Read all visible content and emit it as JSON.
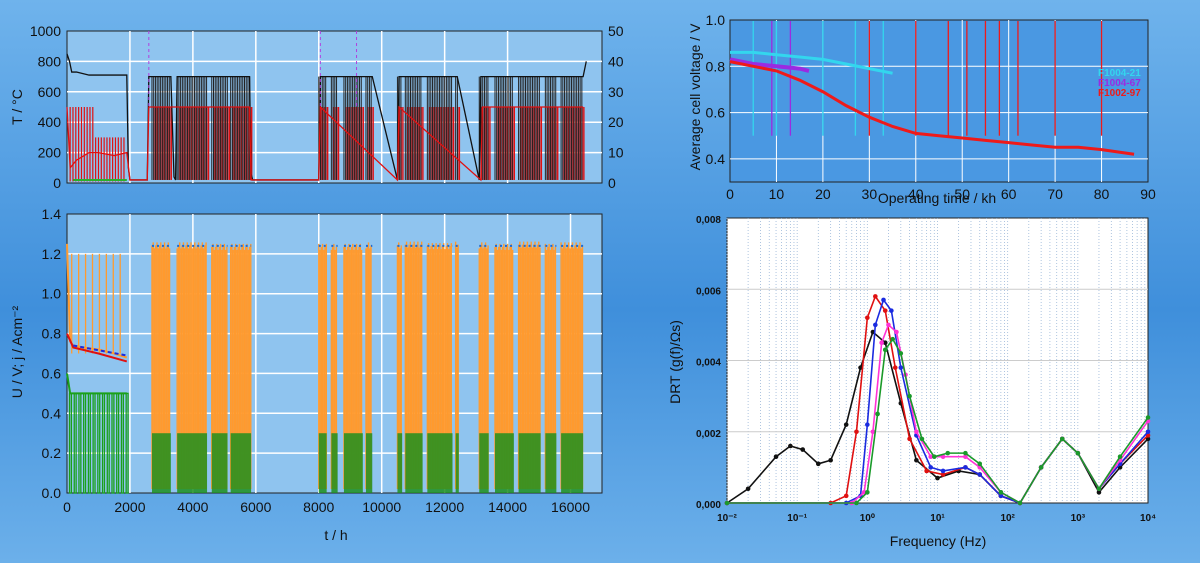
{
  "chart_data": [
    {
      "id": "temperature",
      "type": "line",
      "ylabel": "T / °C",
      "y2label": "",
      "ylim": [
        0,
        1000
      ],
      "yticks": [
        "0",
        "200",
        "400",
        "600",
        "800",
        "1000"
      ],
      "y2lim": [
        0,
        50
      ],
      "y2ticks": [
        "0",
        "10",
        "20",
        "30",
        "40",
        "50"
      ],
      "xlim": [
        0,
        17000
      ],
      "grid": true,
      "series": [
        {
          "color": "#111111",
          "x": [
            0,
            80,
            150,
            300,
            700,
            1900,
            1950,
            2000,
            2550,
            2600,
            2700,
            3300,
            3400,
            3450,
            3500,
            4500,
            4600,
            5100,
            5200,
            5700,
            5800,
            5850,
            5900,
            8000,
            8050,
            9700,
            10500,
            10550,
            10600,
            12400,
            13100,
            13150,
            13200,
            16400,
            16500
          ],
          "y": [
            850,
            800,
            730,
            730,
            710,
            710,
            100,
            20,
            20,
            700,
            700,
            700,
            40,
            20,
            700,
            700,
            700,
            700,
            700,
            700,
            700,
            60,
            20,
            20,
            700,
            700,
            20,
            700,
            700,
            700,
            20,
            700,
            700,
            700,
            800
          ]
        },
        {
          "color": "#e01010",
          "x": [
            0,
            100,
            300,
            700,
            1000,
            1500,
            1900,
            2000,
            2550,
            2600,
            5800,
            5850,
            8000,
            8050,
            10500,
            10550,
            13150,
            13200,
            16400
          ],
          "y": [
            500,
            100,
            150,
            200,
            200,
            180,
            200,
            20,
            20,
            500,
            500,
            20,
            20,
            500,
            20,
            500,
            20,
            500,
            500
          ]
        }
      ]
    },
    {
      "id": "voltage-current",
      "type": "line",
      "xlabel": "t / h",
      "ylabel": "U / V; j / Acm⁻²",
      "xlim": [
        0,
        17000
      ],
      "xticks": [
        "0",
        "2000",
        "4000",
        "6000",
        "8000",
        "10000",
        "12000",
        "14000",
        "16000"
      ],
      "ylim": [
        0,
        1.4
      ],
      "yticks": [
        "0.0",
        "0.2",
        "0.4",
        "0.6",
        "0.8",
        "1.0",
        "1.2",
        "1.4"
      ],
      "grid": true,
      "series": [
        {
          "color": "#ff9a2e",
          "x": [
            0,
            100,
            200,
            500,
            1000,
            1500,
            1900
          ],
          "y": [
            1.25,
            0.76,
            0.74,
            0.73,
            0.72,
            0.7,
            0.68
          ]
        },
        {
          "color": "#1aa01a",
          "x": [
            0,
            100,
            200,
            1900
          ],
          "y": [
            0.6,
            0.5,
            0.5,
            0.5
          ]
        },
        {
          "color": "#e01010",
          "x": [
            0,
            200,
            1000,
            1900
          ],
          "y": [
            0.8,
            0.73,
            0.7,
            0.66
          ]
        }
      ],
      "blocks_orange": [
        [
          2700,
          3300
        ],
        [
          3500,
          4450
        ],
        [
          4600,
          5100
        ],
        [
          5200,
          5850
        ],
        [
          8000,
          8250
        ],
        [
          8400,
          8600
        ],
        [
          8800,
          9400
        ],
        [
          9500,
          9700
        ],
        [
          10500,
          10650
        ],
        [
          10750,
          11300
        ],
        [
          11450,
          12250
        ],
        [
          12350,
          12450
        ],
        [
          13100,
          13400
        ],
        [
          13600,
          14200
        ],
        [
          14350,
          15050
        ],
        [
          15200,
          15550
        ],
        [
          15700,
          16400
        ]
      ],
      "green_level": 0.3
    },
    {
      "id": "cell-voltage",
      "type": "line",
      "xlabel": "Operating time / kh",
      "ylabel": "Average cell voltage / V",
      "xlim": [
        0,
        90
      ],
      "xticks": [
        "0",
        "10",
        "20",
        "30",
        "40",
        "50",
        "60",
        "70",
        "80",
        "90"
      ],
      "ylim": [
        0.3,
        1.0
      ],
      "yticks": [
        "0.4",
        "0.6",
        "0.8",
        "1.0"
      ],
      "legend_position": "right",
      "grid": true,
      "series": [
        {
          "name": "F1004-21",
          "color": "#33d6ee",
          "x": [
            0,
            5,
            10,
            15,
            20,
            25,
            30,
            35
          ],
          "y": [
            0.86,
            0.86,
            0.85,
            0.84,
            0.83,
            0.81,
            0.79,
            0.77
          ]
        },
        {
          "name": "F1004-67",
          "color": "#9a2be2",
          "x": [
            0,
            5,
            10,
            15,
            17
          ],
          "y": [
            0.83,
            0.81,
            0.8,
            0.79,
            0.78
          ]
        },
        {
          "name": "F1002-97",
          "color": "#ee1a1a",
          "x": [
            0,
            5,
            10,
            15,
            20,
            25,
            30,
            35,
            40,
            45,
            50,
            55,
            60,
            65,
            70,
            75,
            80,
            87
          ],
          "y": [
            0.82,
            0.8,
            0.78,
            0.74,
            0.69,
            0.63,
            0.58,
            0.54,
            0.51,
            0.5,
            0.49,
            0.48,
            0.47,
            0.46,
            0.45,
            0.45,
            0.44,
            0.42
          ]
        }
      ],
      "spikes": [
        [
          9,
          "#9a2be2"
        ],
        [
          13,
          "#9a2be2"
        ],
        [
          30,
          "#ee1a1a"
        ],
        [
          40,
          "#ee1a1a"
        ],
        [
          47,
          "#ee1a1a"
        ],
        [
          51,
          "#ee1a1a"
        ],
        [
          55,
          "#ee1a1a"
        ],
        [
          58,
          "#ee1a1a"
        ],
        [
          62,
          "#ee1a1a"
        ],
        [
          70,
          "#ee1a1a"
        ],
        [
          80,
          "#ee1a1a"
        ],
        [
          5,
          "#33d6ee"
        ],
        [
          10,
          "#33d6ee"
        ],
        [
          20,
          "#33d6ee"
        ],
        [
          27,
          "#33d6ee"
        ],
        [
          33,
          "#33d6ee"
        ]
      ]
    },
    {
      "id": "drt",
      "type": "line",
      "xlabel": "Frequency (Hz)",
      "ylabel": "DRT (g(f)/Ωs)",
      "xscale": "log",
      "xlim": [
        0.01,
        10000
      ],
      "xticks": [
        "10⁻²",
        "10⁻¹",
        "10⁰",
        "10¹",
        "10²",
        "10³",
        "10⁴"
      ],
      "ylim": [
        0,
        0.008
      ],
      "yticks": [
        "0,000",
        "0,002",
        "0,004",
        "0,006",
        "0,008"
      ],
      "grid": true,
      "series": [
        {
          "color": "#111111",
          "x": [
            0.01,
            0.02,
            0.05,
            0.08,
            0.12,
            0.2,
            0.3,
            0.5,
            0.8,
            1.2,
            1.8,
            3,
            5,
            10,
            20,
            40,
            80,
            150,
            300,
            600,
            1000,
            2000,
            4000,
            10000
          ],
          "y": [
            0,
            0.0004,
            0.0013,
            0.0016,
            0.0015,
            0.0011,
            0.0012,
            0.0022,
            0.0038,
            0.0048,
            0.0045,
            0.0028,
            0.0012,
            0.0007,
            0.0009,
            0.0008,
            0.0002,
            0,
            0.001,
            0.0018,
            0.0014,
            0.0003,
            0.001,
            0.0018
          ]
        },
        {
          "color": "#e01010",
          "x": [
            0.01,
            0.3,
            0.5,
            0.7,
            1.0,
            1.3,
            1.8,
            2.5,
            4,
            7,
            12,
            25,
            40,
            80,
            150,
            300,
            600,
            1000,
            2000,
            4000,
            10000
          ],
          "y": [
            0,
            0,
            0.0002,
            0.002,
            0.0052,
            0.0058,
            0.0054,
            0.0038,
            0.0018,
            0.0009,
            0.0008,
            0.001,
            0.0008,
            0.0002,
            0,
            0.001,
            0.0018,
            0.0014,
            0.0004,
            0.0011,
            0.0019
          ]
        },
        {
          "color": "#1a2be0",
          "x": [
            0.01,
            0.5,
            0.8,
            1.0,
            1.3,
            1.7,
            2.2,
            3,
            5,
            8,
            12,
            25,
            40,
            80,
            150,
            300,
            600,
            1000,
            2000,
            4000,
            10000
          ],
          "y": [
            0,
            0,
            0.0002,
            0.0022,
            0.005,
            0.0057,
            0.0054,
            0.0038,
            0.0019,
            0.001,
            0.0009,
            0.001,
            0.0008,
            0.0002,
            0,
            0.001,
            0.0018,
            0.0014,
            0.0004,
            0.0011,
            0.002
          ]
        },
        {
          "color": "#ff33d6",
          "x": [
            0.01,
            0.6,
            0.9,
            1.2,
            1.6,
            2.0,
            2.6,
            3.5,
            5,
            8,
            12,
            25,
            40,
            80,
            150,
            300,
            600,
            1000,
            2000,
            4000,
            10000
          ],
          "y": [
            0,
            0,
            0.0003,
            0.002,
            0.0045,
            0.005,
            0.0048,
            0.0036,
            0.002,
            0.0013,
            0.0013,
            0.0013,
            0.001,
            0.0003,
            0,
            0.001,
            0.0018,
            0.0014,
            0.0004,
            0.0012,
            0.0023
          ]
        },
        {
          "color": "#1a9a2a",
          "x": [
            0.01,
            0.7,
            1.0,
            1.4,
            1.8,
            2.3,
            3,
            4,
            6,
            9,
            14,
            25,
            40,
            80,
            150,
            300,
            600,
            1000,
            2000,
            4000,
            10000
          ],
          "y": [
            0,
            0,
            0.0003,
            0.0025,
            0.0043,
            0.0046,
            0.0042,
            0.003,
            0.0018,
            0.0013,
            0.0014,
            0.0014,
            0.0011,
            0.0003,
            0,
            0.001,
            0.0018,
            0.0014,
            0.0004,
            0.0013,
            0.0024
          ]
        }
      ]
    }
  ]
}
